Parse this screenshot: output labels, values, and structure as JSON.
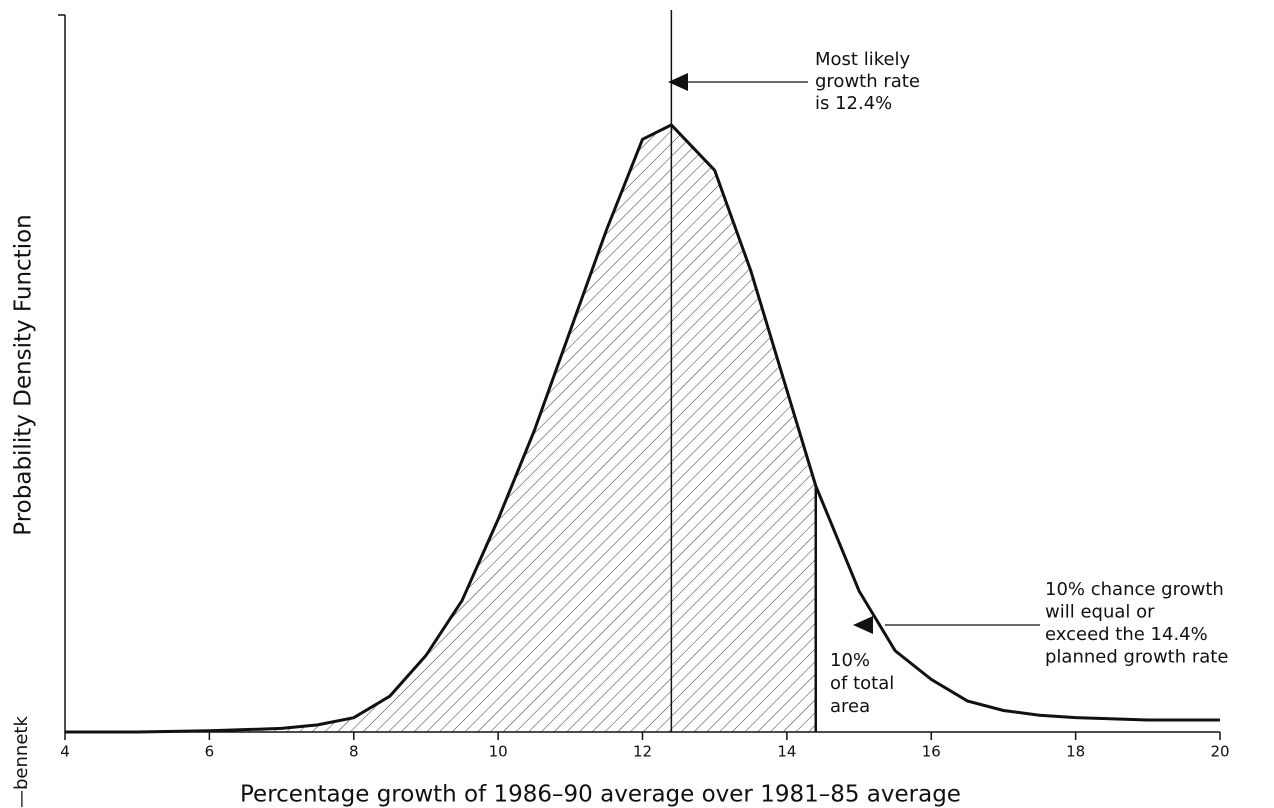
{
  "chart_data": {
    "type": "line",
    "x_label": "Percentage growth of 1986–90 average over 1981–85 average",
    "y_label": "Probability Density Function",
    "credit": "—bennetk",
    "xlim": [
      4,
      20
    ],
    "xticks": [
      4,
      6,
      8,
      10,
      12,
      14,
      16,
      18,
      20
    ],
    "ylim": [
      0,
      0.3
    ],
    "yticks": [],
    "mode_line": 12.4,
    "shade_to": 14.4,
    "series": [
      {
        "color": "#111111",
        "x": [
          4,
          5,
          6,
          7,
          7.5,
          8,
          8.5,
          9,
          9.5,
          10,
          10.5,
          11,
          11.5,
          12,
          12.4,
          13,
          13.5,
          14,
          14.4,
          15,
          15.5,
          16,
          16.5,
          17,
          17.5,
          18,
          19,
          20
        ],
        "values": [
          0,
          0,
          0.0005,
          0.0015,
          0.003,
          0.006,
          0.015,
          0.032,
          0.055,
          0.089,
          0.126,
          0.168,
          0.21,
          0.248,
          0.254,
          0.235,
          0.193,
          0.143,
          0.103,
          0.059,
          0.034,
          0.022,
          0.013,
          0.009,
          0.007,
          0.006,
          0.005,
          0.005
        ]
      }
    ],
    "annotations": [
      {
        "lines": [
          "Most likely",
          "growth rate",
          "is 12.4%"
        ]
      },
      {
        "lines": [
          "10% chance growth",
          "will equal or",
          "exceed the 14.4%",
          "planned growth rate"
        ]
      },
      {
        "lines": [
          "10%",
          "of total",
          "area"
        ]
      }
    ]
  }
}
